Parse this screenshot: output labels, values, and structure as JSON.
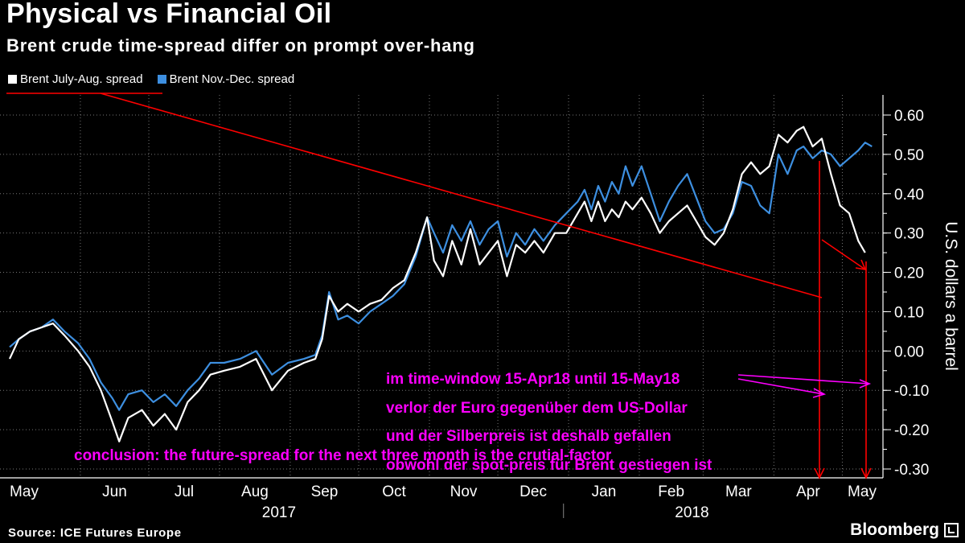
{
  "header": {
    "title": "Physical vs Financial Oil",
    "subtitle": "Brent crude time-spread differ on prompt over-hang"
  },
  "legend": {
    "items": [
      {
        "label": "Brent July-Aug. spread",
        "color": "#ffffff"
      },
      {
        "label": "Brent Nov.-Dec. spread",
        "color": "#3d8fe0"
      }
    ]
  },
  "footer": {
    "source": "Source: ICE Futures Europe",
    "brand": "Bloomberg"
  },
  "annotations": {
    "lines": [
      "im time-window 15-Apr18 until 15-May18",
      "verlor der Euro gegenüber dem US-Dollar",
      "und der Silberpreis ist deshalb gefallen",
      "obwohl der spot-preis für Brent gestiegen ist"
    ],
    "conclusion": "conclusion: the future-spread for the next three month is the crutial-factor",
    "color": "#ff00ff",
    "arrow_color": "#ff0000"
  },
  "chart_data": {
    "type": "line",
    "title": "Physical vs Financial Oil",
    "subtitle": "Brent crude time-spread differ on prompt over-hang",
    "ylabel": "U.S. dollars a barrel",
    "xlabel": "",
    "ylim": [
      -0.32,
      0.65
    ],
    "y_ticks": [
      0.6,
      0.5,
      0.4,
      0.3,
      0.2,
      0.1,
      0.0,
      -0.1,
      -0.2,
      -0.3
    ],
    "y_tick_labels": [
      "0.60",
      "0.50",
      "0.40",
      "0.30",
      "0.20",
      "0.10",
      "0.00",
      "-0.10",
      "-0.20",
      "-0.30"
    ],
    "x_range": [
      "2017-05-01",
      "2018-05-16"
    ],
    "x_tick_labels": [
      "May",
      "Jun",
      "Jul",
      "Aug",
      "Sep",
      "Oct",
      "Nov",
      "Dec",
      "Jan",
      "Feb",
      "Mar",
      "Apr",
      "May"
    ],
    "x_tick_dates": [
      "2017-05-01",
      "2017-06-01",
      "2017-07-01",
      "2017-08-01",
      "2017-09-01",
      "2017-10-01",
      "2017-11-01",
      "2017-12-01",
      "2018-01-01",
      "2018-02-01",
      "2018-03-01",
      "2018-04-01",
      "2018-05-01"
    ],
    "year_labels": [
      {
        "label": "2017",
        "center": "2017-09-01"
      },
      {
        "label": "2018",
        "center": "2018-03-01"
      }
    ],
    "year_divider": "2018-01-15",
    "grid": true,
    "legend_position": "top-left",
    "series": [
      {
        "name": "Brent July-Aug. spread",
        "color": "#ffffff",
        "points": [
          [
            "2017-05-01",
            -0.02
          ],
          [
            "2017-05-05",
            0.03
          ],
          [
            "2017-05-10",
            0.05
          ],
          [
            "2017-05-15",
            0.06
          ],
          [
            "2017-05-20",
            0.07
          ],
          [
            "2017-05-25",
            0.04
          ],
          [
            "2017-05-31",
            0.0
          ],
          [
            "2017-06-05",
            -0.04
          ],
          [
            "2017-06-10",
            -0.1
          ],
          [
            "2017-06-15",
            -0.18
          ],
          [
            "2017-06-18",
            -0.23
          ],
          [
            "2017-06-22",
            -0.17
          ],
          [
            "2017-06-28",
            -0.15
          ],
          [
            "2017-07-03",
            -0.19
          ],
          [
            "2017-07-08",
            -0.16
          ],
          [
            "2017-07-13",
            -0.2
          ],
          [
            "2017-07-18",
            -0.13
          ],
          [
            "2017-07-23",
            -0.1
          ],
          [
            "2017-07-28",
            -0.06
          ],
          [
            "2017-08-03",
            -0.05
          ],
          [
            "2017-08-10",
            -0.04
          ],
          [
            "2017-08-17",
            -0.02
          ],
          [
            "2017-08-24",
            -0.1
          ],
          [
            "2017-08-31",
            -0.05
          ],
          [
            "2017-09-07",
            -0.03
          ],
          [
            "2017-09-12",
            -0.02
          ],
          [
            "2017-09-15",
            0.03
          ],
          [
            "2017-09-18",
            0.14
          ],
          [
            "2017-09-22",
            0.1
          ],
          [
            "2017-09-26",
            0.12
          ],
          [
            "2017-10-01",
            0.1
          ],
          [
            "2017-10-06",
            0.12
          ],
          [
            "2017-10-11",
            0.13
          ],
          [
            "2017-10-16",
            0.16
          ],
          [
            "2017-10-21",
            0.18
          ],
          [
            "2017-10-26",
            0.25
          ],
          [
            "2017-10-31",
            0.34
          ],
          [
            "2017-11-03",
            0.23
          ],
          [
            "2017-11-07",
            0.19
          ],
          [
            "2017-11-11",
            0.28
          ],
          [
            "2017-11-15",
            0.22
          ],
          [
            "2017-11-19",
            0.31
          ],
          [
            "2017-11-23",
            0.22
          ],
          [
            "2017-11-27",
            0.25
          ],
          [
            "2017-12-01",
            0.28
          ],
          [
            "2017-12-05",
            0.19
          ],
          [
            "2017-12-09",
            0.27
          ],
          [
            "2017-12-13",
            0.25
          ],
          [
            "2017-12-17",
            0.28
          ],
          [
            "2017-12-21",
            0.25
          ],
          [
            "2017-12-26",
            0.3
          ],
          [
            "2017-12-31",
            0.3
          ],
          [
            "2018-01-05",
            0.35
          ],
          [
            "2018-01-08",
            0.38
          ],
          [
            "2018-01-11",
            0.33
          ],
          [
            "2018-01-14",
            0.38
          ],
          [
            "2018-01-17",
            0.33
          ],
          [
            "2018-01-20",
            0.36
          ],
          [
            "2018-01-23",
            0.34
          ],
          [
            "2018-01-26",
            0.38
          ],
          [
            "2018-01-29",
            0.36
          ],
          [
            "2018-02-02",
            0.39
          ],
          [
            "2018-02-06",
            0.35
          ],
          [
            "2018-02-10",
            0.3
          ],
          [
            "2018-02-14",
            0.33
          ],
          [
            "2018-02-18",
            0.35
          ],
          [
            "2018-02-22",
            0.37
          ],
          [
            "2018-02-26",
            0.33
          ],
          [
            "2018-03-02",
            0.29
          ],
          [
            "2018-03-06",
            0.27
          ],
          [
            "2018-03-10",
            0.3
          ],
          [
            "2018-03-14",
            0.36
          ],
          [
            "2018-03-18",
            0.45
          ],
          [
            "2018-03-22",
            0.48
          ],
          [
            "2018-03-26",
            0.45
          ],
          [
            "2018-03-30",
            0.47
          ],
          [
            "2018-04-03",
            0.55
          ],
          [
            "2018-04-07",
            0.53
          ],
          [
            "2018-04-11",
            0.56
          ],
          [
            "2018-04-14",
            0.57
          ],
          [
            "2018-04-18",
            0.52
          ],
          [
            "2018-04-22",
            0.54
          ],
          [
            "2018-04-26",
            0.45
          ],
          [
            "2018-04-30",
            0.37
          ],
          [
            "2018-05-04",
            0.35
          ],
          [
            "2018-05-08",
            0.28
          ],
          [
            "2018-05-11",
            0.25
          ]
        ]
      },
      {
        "name": "Brent Nov.-Dec. spread",
        "color": "#3d8fe0",
        "points": [
          [
            "2017-05-01",
            0.01
          ],
          [
            "2017-05-05",
            0.03
          ],
          [
            "2017-05-10",
            0.05
          ],
          [
            "2017-05-15",
            0.06
          ],
          [
            "2017-05-20",
            0.08
          ],
          [
            "2017-05-25",
            0.05
          ],
          [
            "2017-05-31",
            0.02
          ],
          [
            "2017-06-05",
            -0.02
          ],
          [
            "2017-06-10",
            -0.08
          ],
          [
            "2017-06-15",
            -0.12
          ],
          [
            "2017-06-18",
            -0.15
          ],
          [
            "2017-06-22",
            -0.11
          ],
          [
            "2017-06-28",
            -0.1
          ],
          [
            "2017-07-03",
            -0.13
          ],
          [
            "2017-07-08",
            -0.11
          ],
          [
            "2017-07-13",
            -0.14
          ],
          [
            "2017-07-18",
            -0.1
          ],
          [
            "2017-07-23",
            -0.07
          ],
          [
            "2017-07-28",
            -0.03
          ],
          [
            "2017-08-03",
            -0.03
          ],
          [
            "2017-08-10",
            -0.02
          ],
          [
            "2017-08-17",
            0.0
          ],
          [
            "2017-08-24",
            -0.06
          ],
          [
            "2017-08-31",
            -0.03
          ],
          [
            "2017-09-07",
            -0.02
          ],
          [
            "2017-09-12",
            -0.01
          ],
          [
            "2017-09-15",
            0.04
          ],
          [
            "2017-09-18",
            0.15
          ],
          [
            "2017-09-22",
            0.08
          ],
          [
            "2017-09-26",
            0.09
          ],
          [
            "2017-10-01",
            0.07
          ],
          [
            "2017-10-06",
            0.1
          ],
          [
            "2017-10-11",
            0.12
          ],
          [
            "2017-10-16",
            0.14
          ],
          [
            "2017-10-21",
            0.17
          ],
          [
            "2017-10-26",
            0.24
          ],
          [
            "2017-10-31",
            0.34
          ],
          [
            "2017-11-03",
            0.3
          ],
          [
            "2017-11-07",
            0.25
          ],
          [
            "2017-11-11",
            0.32
          ],
          [
            "2017-11-15",
            0.28
          ],
          [
            "2017-11-19",
            0.33
          ],
          [
            "2017-11-23",
            0.27
          ],
          [
            "2017-11-27",
            0.31
          ],
          [
            "2017-12-01",
            0.33
          ],
          [
            "2017-12-05",
            0.24
          ],
          [
            "2017-12-09",
            0.3
          ],
          [
            "2017-12-13",
            0.27
          ],
          [
            "2017-12-17",
            0.31
          ],
          [
            "2017-12-21",
            0.28
          ],
          [
            "2017-12-26",
            0.32
          ],
          [
            "2017-12-31",
            0.35
          ],
          [
            "2018-01-05",
            0.38
          ],
          [
            "2018-01-08",
            0.41
          ],
          [
            "2018-01-11",
            0.36
          ],
          [
            "2018-01-14",
            0.42
          ],
          [
            "2018-01-17",
            0.38
          ],
          [
            "2018-01-20",
            0.43
          ],
          [
            "2018-01-23",
            0.4
          ],
          [
            "2018-01-26",
            0.47
          ],
          [
            "2018-01-29",
            0.42
          ],
          [
            "2018-02-02",
            0.47
          ],
          [
            "2018-02-06",
            0.4
          ],
          [
            "2018-02-10",
            0.33
          ],
          [
            "2018-02-14",
            0.38
          ],
          [
            "2018-02-18",
            0.42
          ],
          [
            "2018-02-22",
            0.45
          ],
          [
            "2018-02-26",
            0.39
          ],
          [
            "2018-03-02",
            0.33
          ],
          [
            "2018-03-06",
            0.3
          ],
          [
            "2018-03-10",
            0.31
          ],
          [
            "2018-03-14",
            0.35
          ],
          [
            "2018-03-18",
            0.43
          ],
          [
            "2018-03-22",
            0.42
          ],
          [
            "2018-03-26",
            0.37
          ],
          [
            "2018-03-30",
            0.35
          ],
          [
            "2018-04-03",
            0.5
          ],
          [
            "2018-04-07",
            0.45
          ],
          [
            "2018-04-11",
            0.51
          ],
          [
            "2018-04-14",
            0.52
          ],
          [
            "2018-04-18",
            0.49
          ],
          [
            "2018-04-22",
            0.51
          ],
          [
            "2018-04-26",
            0.5
          ],
          [
            "2018-04-30",
            0.47
          ],
          [
            "2018-05-04",
            0.49
          ],
          [
            "2018-05-08",
            0.51
          ],
          [
            "2018-05-11",
            0.53
          ],
          [
            "2018-05-14",
            0.52
          ]
        ]
      }
    ]
  }
}
